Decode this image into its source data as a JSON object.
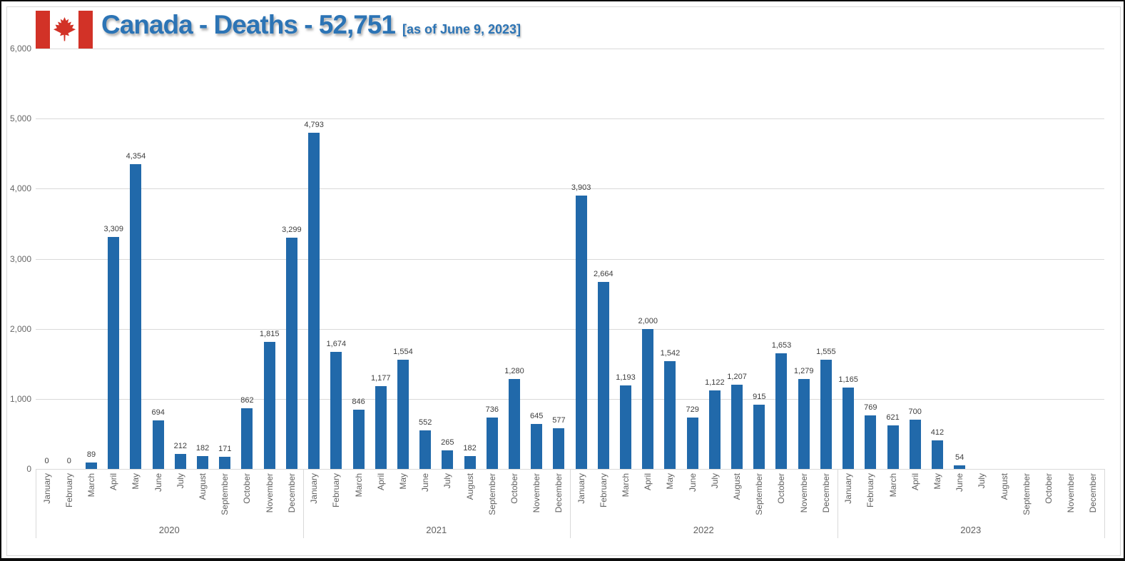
{
  "header": {
    "title": "Canada - Deaths - 52,751",
    "subtitle": "[as of June 9, 2023]",
    "flag_icon": "canada-flag"
  },
  "colors": {
    "bar": "#2169aa",
    "title": "#2c74b5",
    "grid": "#d9d9d9",
    "flag_red": "#d23227"
  },
  "chart_data": {
    "type": "bar",
    "title": "Canada - Deaths - 52,751",
    "subtitle": "[as of June 9, 2023]",
    "ylabel": "",
    "xlabel": "",
    "ylim": [
      0,
      6000
    ],
    "ytick_labels": [
      "0",
      "1,000",
      "2,000",
      "3,000",
      "4,000",
      "5,000",
      "6,000"
    ],
    "grid": true,
    "legend": false,
    "bar_color": "#2169aa",
    "months": [
      "January",
      "February",
      "March",
      "April",
      "May",
      "June",
      "July",
      "August",
      "September",
      "October",
      "November",
      "December"
    ],
    "series": [
      {
        "name": "2020",
        "values": [
          0,
          0,
          89,
          3309,
          4354,
          694,
          212,
          182,
          171,
          862,
          1815,
          3299
        ]
      },
      {
        "name": "2021",
        "values": [
          4793,
          1674,
          846,
          1177,
          1554,
          552,
          265,
          182,
          736,
          1280,
          645,
          577
        ]
      },
      {
        "name": "2022",
        "values": [
          3903,
          2664,
          1193,
          2000,
          1542,
          729,
          1122,
          1207,
          915,
          1653,
          1279,
          1555
        ]
      },
      {
        "name": "2023",
        "values": [
          1165,
          769,
          621,
          700,
          412,
          54,
          null,
          null,
          null,
          null,
          null,
          null
        ]
      }
    ]
  }
}
